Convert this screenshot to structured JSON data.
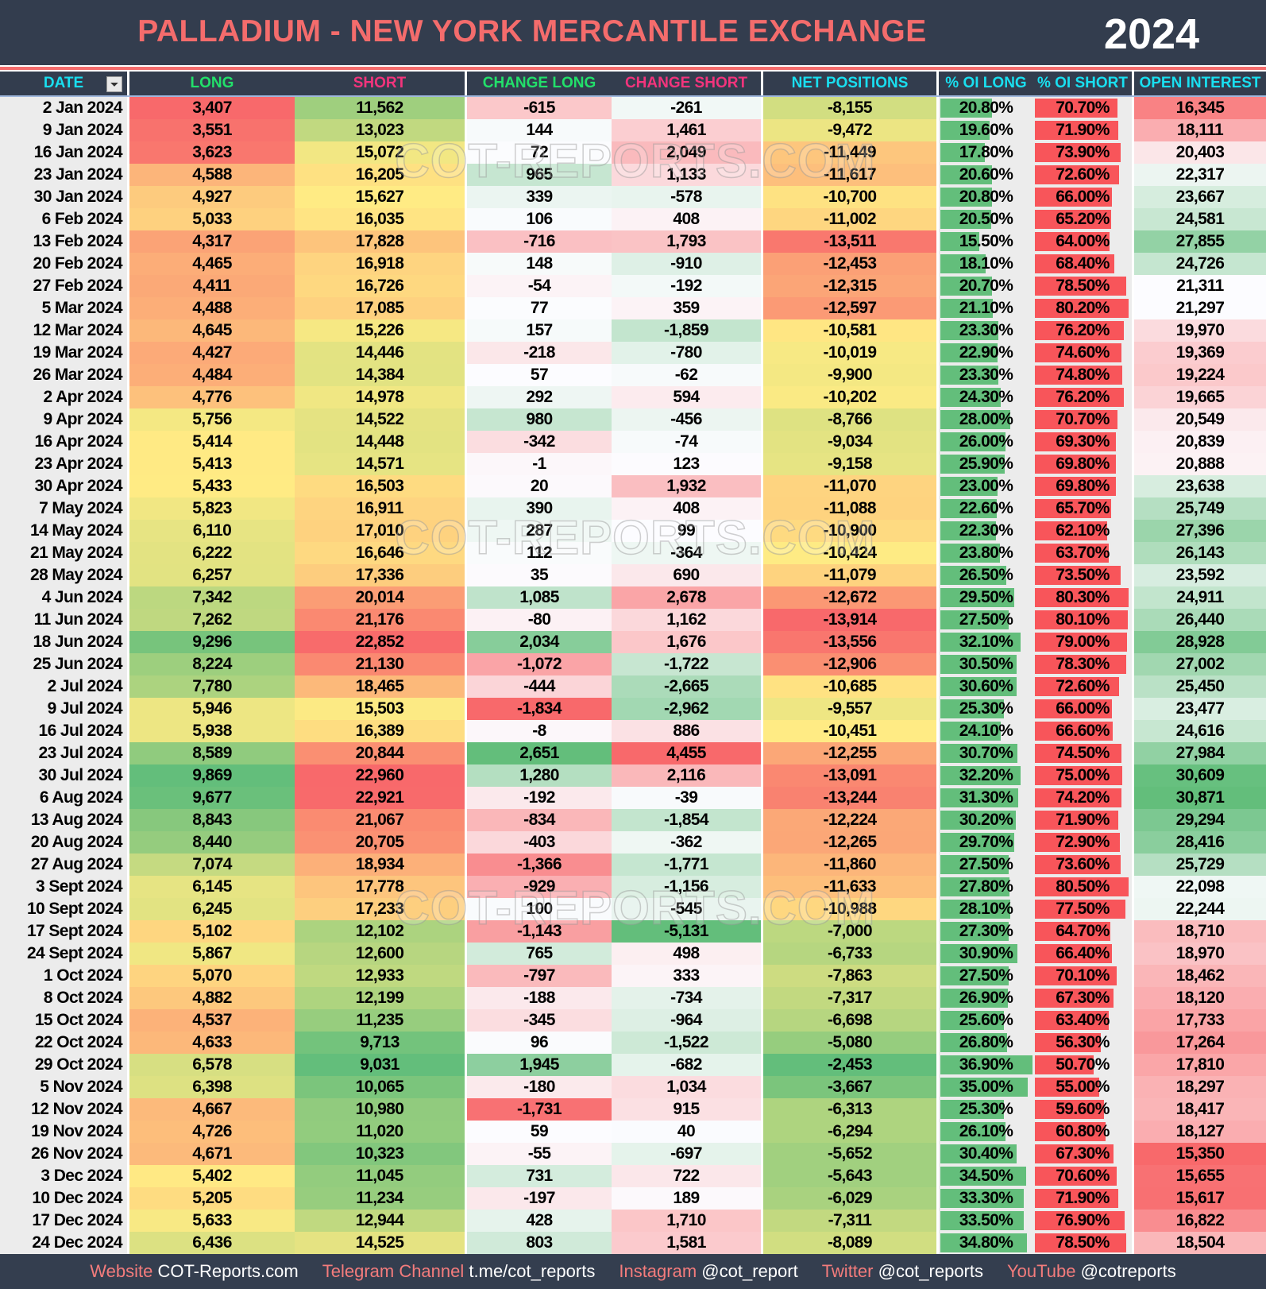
{
  "header": {
    "title": "PALLADIUM - NEW YORK MERCANTILE EXCHANGE",
    "year": "2024"
  },
  "columns": [
    {
      "label": "DATE",
      "color": "#19dff0"
    },
    {
      "label": "LONG",
      "color": "#22e06a"
    },
    {
      "label": "SHORT",
      "color": "#f2347c"
    },
    {
      "label": "CHANGE LONG",
      "color": "#22e06a"
    },
    {
      "label": "CHANGE SHORT",
      "color": "#f2347c"
    },
    {
      "label": "NET POSITIONS",
      "color": "#19dff0"
    },
    {
      "label": "% OI LONG",
      "color": "#19dff0"
    },
    {
      "label": "% OI SHORT",
      "color": "#19dff0"
    },
    {
      "label": "OPEN INTEREST",
      "color": "#19dff0"
    }
  ],
  "filter_icon": "filter-icon",
  "colors": {
    "red": "#f8696b",
    "yellow": "#ffeb84",
    "green": "#63be7b",
    "white": "#fcfcff",
    "bar_long": "#63be7b",
    "bar_short": "#f8555a"
  },
  "watermark": "COT-REPORTS.COM",
  "rows": [
    [
      "2 Jan 2024",
      "3,407",
      "11,562",
      "-615",
      "-261",
      "-8,155",
      "20.80%",
      "70.70%",
      "16,345"
    ],
    [
      "9 Jan 2024",
      "3,551",
      "13,023",
      "144",
      "1,461",
      "-9,472",
      "19.60%",
      "71.90%",
      "18,111"
    ],
    [
      "16 Jan 2024",
      "3,623",
      "15,072",
      "72",
      "2,049",
      "-11,449",
      "17.80%",
      "73.90%",
      "20,403"
    ],
    [
      "23 Jan 2024",
      "4,588",
      "16,205",
      "965",
      "1,133",
      "-11,617",
      "20.60%",
      "72.60%",
      "22,317"
    ],
    [
      "30 Jan 2024",
      "4,927",
      "15,627",
      "339",
      "-578",
      "-10,700",
      "20.80%",
      "66.00%",
      "23,667"
    ],
    [
      "6 Feb 2024",
      "5,033",
      "16,035",
      "106",
      "408",
      "-11,002",
      "20.50%",
      "65.20%",
      "24,581"
    ],
    [
      "13 Feb 2024",
      "4,317",
      "17,828",
      "-716",
      "1,793",
      "-13,511",
      "15.50%",
      "64.00%",
      "27,855"
    ],
    [
      "20 Feb 2024",
      "4,465",
      "16,918",
      "148",
      "-910",
      "-12,453",
      "18.10%",
      "68.40%",
      "24,726"
    ],
    [
      "27 Feb 2024",
      "4,411",
      "16,726",
      "-54",
      "-192",
      "-12,315",
      "20.70%",
      "78.50%",
      "21,311"
    ],
    [
      "5 Mar 2024",
      "4,488",
      "17,085",
      "77",
      "359",
      "-12,597",
      "21.10%",
      "80.20%",
      "21,297"
    ],
    [
      "12 Mar 2024",
      "4,645",
      "15,226",
      "157",
      "-1,859",
      "-10,581",
      "23.30%",
      "76.20%",
      "19,970"
    ],
    [
      "19 Mar 2024",
      "4,427",
      "14,446",
      "-218",
      "-780",
      "-10,019",
      "22.90%",
      "74.60%",
      "19,369"
    ],
    [
      "26 Mar 2024",
      "4,484",
      "14,384",
      "57",
      "-62",
      "-9,900",
      "23.30%",
      "74.80%",
      "19,224"
    ],
    [
      "2 Apr 2024",
      "4,776",
      "14,978",
      "292",
      "594",
      "-10,202",
      "24.30%",
      "76.20%",
      "19,665"
    ],
    [
      "9 Apr 2024",
      "5,756",
      "14,522",
      "980",
      "-456",
      "-8,766",
      "28.00%",
      "70.70%",
      "20,549"
    ],
    [
      "16 Apr 2024",
      "5,414",
      "14,448",
      "-342",
      "-74",
      "-9,034",
      "26.00%",
      "69.30%",
      "20,839"
    ],
    [
      "23 Apr 2024",
      "5,413",
      "14,571",
      "-1",
      "123",
      "-9,158",
      "25.90%",
      "69.80%",
      "20,888"
    ],
    [
      "30 Apr 2024",
      "5,433",
      "16,503",
      "20",
      "1,932",
      "-11,070",
      "23.00%",
      "69.80%",
      "23,638"
    ],
    [
      "7 May 2024",
      "5,823",
      "16,911",
      "390",
      "408",
      "-11,088",
      "22.60%",
      "65.70%",
      "25,749"
    ],
    [
      "14 May 2024",
      "6,110",
      "17,010",
      "287",
      "99",
      "-10,900",
      "22.30%",
      "62.10%",
      "27,396"
    ],
    [
      "21 May 2024",
      "6,222",
      "16,646",
      "112",
      "-364",
      "-10,424",
      "23.80%",
      "63.70%",
      "26,143"
    ],
    [
      "28 May 2024",
      "6,257",
      "17,336",
      "35",
      "690",
      "-11,079",
      "26.50%",
      "73.50%",
      "23,592"
    ],
    [
      "4 Jun 2024",
      "7,342",
      "20,014",
      "1,085",
      "2,678",
      "-12,672",
      "29.50%",
      "80.30%",
      "24,911"
    ],
    [
      "11 Jun 2024",
      "7,262",
      "21,176",
      "-80",
      "1,162",
      "-13,914",
      "27.50%",
      "80.10%",
      "26,440"
    ],
    [
      "18 Jun 2024",
      "9,296",
      "22,852",
      "2,034",
      "1,676",
      "-13,556",
      "32.10%",
      "79.00%",
      "28,928"
    ],
    [
      "25 Jun 2024",
      "8,224",
      "21,130",
      "-1,072",
      "-1,722",
      "-12,906",
      "30.50%",
      "78.30%",
      "27,002"
    ],
    [
      "2 Jul 2024",
      "7,780",
      "18,465",
      "-444",
      "-2,665",
      "-10,685",
      "30.60%",
      "72.60%",
      "25,450"
    ],
    [
      "9 Jul 2024",
      "5,946",
      "15,503",
      "-1,834",
      "-2,962",
      "-9,557",
      "25.30%",
      "66.00%",
      "23,477"
    ],
    [
      "16 Jul 2024",
      "5,938",
      "16,389",
      "-8",
      "886",
      "-10,451",
      "24.10%",
      "66.60%",
      "24,616"
    ],
    [
      "23 Jul 2024",
      "8,589",
      "20,844",
      "2,651",
      "4,455",
      "-12,255",
      "30.70%",
      "74.50%",
      "27,984"
    ],
    [
      "30 Jul 2024",
      "9,869",
      "22,960",
      "1,280",
      "2,116",
      "-13,091",
      "32.20%",
      "75.00%",
      "30,609"
    ],
    [
      "6 Aug 2024",
      "9,677",
      "22,921",
      "-192",
      "-39",
      "-13,244",
      "31.30%",
      "74.20%",
      "30,871"
    ],
    [
      "13 Aug 2024",
      "8,843",
      "21,067",
      "-834",
      "-1,854",
      "-12,224",
      "30.20%",
      "71.90%",
      "29,294"
    ],
    [
      "20 Aug 2024",
      "8,440",
      "20,705",
      "-403",
      "-362",
      "-12,265",
      "29.70%",
      "72.90%",
      "28,416"
    ],
    [
      "27 Aug 2024",
      "7,074",
      "18,934",
      "-1,366",
      "-1,771",
      "-11,860",
      "27.50%",
      "73.60%",
      "25,729"
    ],
    [
      "3 Sept 2024",
      "6,145",
      "17,778",
      "-929",
      "-1,156",
      "-11,633",
      "27.80%",
      "80.50%",
      "22,098"
    ],
    [
      "10 Sept 2024",
      "6,245",
      "17,233",
      "100",
      "-545",
      "-10,988",
      "28.10%",
      "77.50%",
      "22,244"
    ],
    [
      "17 Sept 2024",
      "5,102",
      "12,102",
      "-1,143",
      "-5,131",
      "-7,000",
      "27.30%",
      "64.70%",
      "18,710"
    ],
    [
      "24 Sept 2024",
      "5,867",
      "12,600",
      "765",
      "498",
      "-6,733",
      "30.90%",
      "66.40%",
      "18,970"
    ],
    [
      "1 Oct 2024",
      "5,070",
      "12,933",
      "-797",
      "333",
      "-7,863",
      "27.50%",
      "70.10%",
      "18,462"
    ],
    [
      "8 Oct 2024",
      "4,882",
      "12,199",
      "-188",
      "-734",
      "-7,317",
      "26.90%",
      "67.30%",
      "18,120"
    ],
    [
      "15 Oct 2024",
      "4,537",
      "11,235",
      "-345",
      "-964",
      "-6,698",
      "25.60%",
      "63.40%",
      "17,733"
    ],
    [
      "22 Oct 2024",
      "4,633",
      "9,713",
      "96",
      "-1,522",
      "-5,080",
      "26.80%",
      "56.30%",
      "17,264"
    ],
    [
      "29 Oct 2024",
      "6,578",
      "9,031",
      "1,945",
      "-682",
      "-2,453",
      "36.90%",
      "50.70%",
      "17,810"
    ],
    [
      "5 Nov 2024",
      "6,398",
      "10,065",
      "-180",
      "1,034",
      "-3,667",
      "35.00%",
      "55.00%",
      "18,297"
    ],
    [
      "12 Nov 2024",
      "4,667",
      "10,980",
      "-1,731",
      "915",
      "-6,313",
      "25.30%",
      "59.60%",
      "18,417"
    ],
    [
      "19 Nov 2024",
      "4,726",
      "11,020",
      "59",
      "40",
      "-6,294",
      "26.10%",
      "60.80%",
      "18,127"
    ],
    [
      "26 Nov 2024",
      "4,671",
      "10,323",
      "-55",
      "-697",
      "-5,652",
      "30.40%",
      "67.30%",
      "15,350"
    ],
    [
      "3 Dec 2024",
      "5,402",
      "11,045",
      "731",
      "722",
      "-5,643",
      "34.50%",
      "70.60%",
      "15,655"
    ],
    [
      "10 Dec 2024",
      "5,205",
      "11,234",
      "-197",
      "189",
      "-6,029",
      "33.30%",
      "71.90%",
      "15,617"
    ],
    [
      "17 Dec 2024",
      "5,633",
      "12,944",
      "428",
      "1,710",
      "-7,311",
      "33.50%",
      "76.90%",
      "16,822"
    ],
    [
      "24 Dec 2024",
      "6,436",
      "14,525",
      "803",
      "1,581",
      "-8,089",
      "34.80%",
      "78.50%",
      "18,504"
    ]
  ],
  "footer": [
    {
      "label": "Website",
      "value": "COT-Reports.com"
    },
    {
      "label": "Telegram Channel",
      "value": "t.me/cot_reports"
    },
    {
      "label": "Instagram",
      "value": "@cot_report"
    },
    {
      "label": "Twitter",
      "value": "@cot_reports"
    },
    {
      "label": "YouTube",
      "value": "@cotreports"
    }
  ]
}
